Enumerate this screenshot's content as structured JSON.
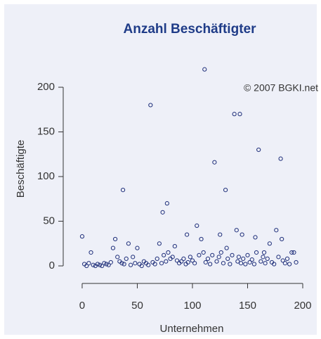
{
  "chart_data": {
    "type": "scatter",
    "title": "Anzahl Beschäftigter",
    "annotation": "© 2007 BGKI.net",
    "x_label": "Unternehmen",
    "y_label": "Beschäftigte",
    "color": "#1f2f7a",
    "xlim": [
      -8,
      203
    ],
    "ylim": [
      -8,
      232
    ],
    "xticks": [
      0,
      50,
      100,
      150,
      200
    ],
    "yticks": [
      0,
      50,
      100,
      150,
      200
    ],
    "series": [
      {
        "x": [
          0,
          2,
          4,
          6,
          8,
          10,
          12,
          14,
          16,
          18,
          20,
          22,
          24,
          26,
          28,
          30,
          32,
          34,
          36,
          37,
          38,
          40,
          42,
          44,
          46,
          48,
          50,
          52,
          54,
          56,
          58,
          60,
          62,
          64,
          66,
          68,
          70,
          72,
          73,
          74,
          76,
          77,
          78,
          80,
          82,
          84,
          86,
          88,
          90,
          92,
          94,
          95,
          96,
          98,
          100,
          102,
          104,
          106,
          108,
          110,
          111,
          112,
          114,
          116,
          118,
          120,
          122,
          124,
          125,
          126,
          128,
          130,
          131,
          132,
          134,
          136,
          138,
          140,
          141,
          142,
          143,
          144,
          145,
          146,
          148,
          150,
          152,
          154,
          156,
          157,
          158,
          160,
          162,
          164,
          165,
          166,
          168,
          170,
          172,
          174,
          176,
          178,
          180,
          181,
          182,
          184,
          186,
          188,
          190,
          192,
          194
        ],
        "values": [
          33,
          2,
          0,
          3,
          15,
          1,
          0,
          2,
          1,
          0,
          3,
          2,
          1,
          4,
          20,
          30,
          10,
          5,
          3,
          85,
          2,
          8,
          25,
          1,
          10,
          3,
          20,
          2,
          0,
          5,
          3,
          1,
          180,
          4,
          2,
          8,
          25,
          3,
          60,
          12,
          5,
          70,
          15,
          8,
          10,
          22,
          6,
          3,
          5,
          8,
          2,
          35,
          4,
          10,
          6,
          3,
          45,
          12,
          30,
          15,
          220,
          4,
          8,
          2,
          12,
          116,
          5,
          10,
          35,
          15,
          3,
          85,
          20,
          8,
          2,
          12,
          170,
          40,
          5,
          10,
          170,
          3,
          35,
          8,
          2,
          12,
          4,
          7,
          2,
          32,
          15,
          130,
          5,
          10,
          15,
          3,
          8,
          25,
          4,
          2,
          40,
          10,
          120,
          30,
          6,
          3,
          8,
          2,
          15,
          15,
          4
        ]
      }
    ]
  }
}
